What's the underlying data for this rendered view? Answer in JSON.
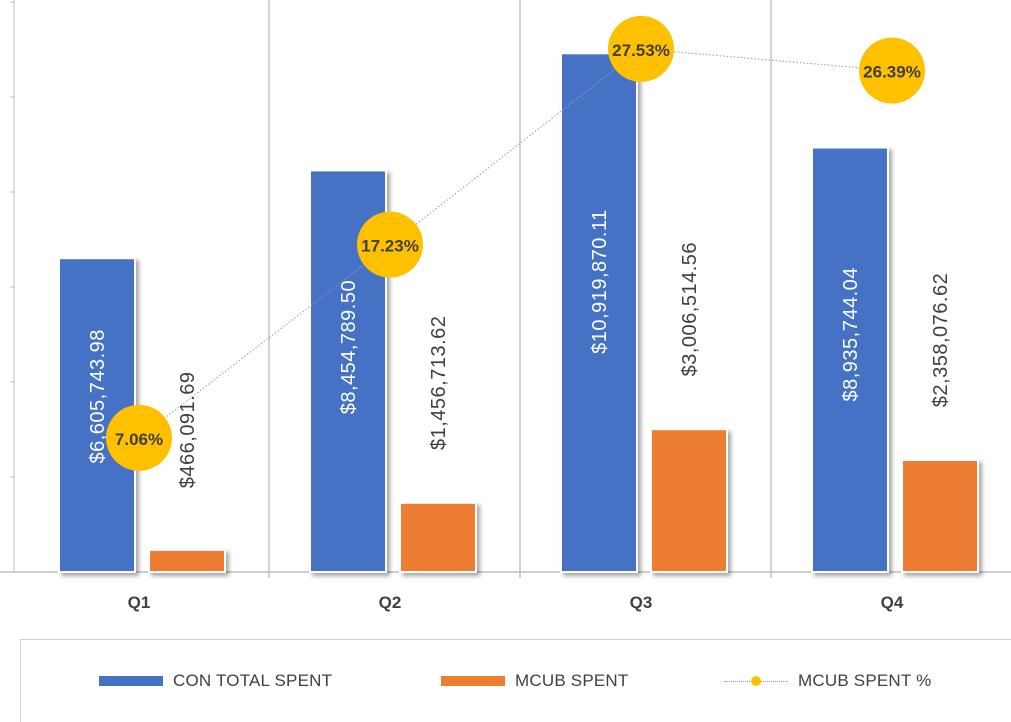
{
  "chart_data": {
    "type": "bar",
    "categories": [
      "Q1",
      "Q2",
      "Q3",
      "Q4"
    ],
    "series": [
      {
        "name": "CON TOTAL SPENT",
        "type": "bar",
        "axis": "primary",
        "values": [
          6605743.98,
          8454789.5,
          10919870.11,
          8935744.04
        ],
        "labels": [
          "$6,605,743.98",
          "$8,454,789.50",
          "$10,919,870.11",
          "$8,935,744.04"
        ],
        "color": "#4472c4"
      },
      {
        "name": "MCUB SPENT",
        "type": "bar",
        "axis": "primary",
        "values": [
          466091.69,
          1456713.62,
          3006514.56,
          2358076.62
        ],
        "labels": [
          "$466,091.69",
          "$1,456,713.62",
          "$3,006,514.56",
          "$2,358,076.62"
        ],
        "color": "#ed7d31"
      },
      {
        "name": "MCUB SPENT %",
        "type": "line",
        "axis": "secondary",
        "values": [
          7.06,
          17.23,
          27.53,
          26.39
        ],
        "labels": [
          "7.06%",
          "17.23%",
          "27.53%",
          "26.39%"
        ],
        "color": "#ffc000"
      }
    ],
    "ylim": [
      0,
      12000000
    ],
    "y2lim": [
      0,
      30
    ],
    "grid": "vertical separators between categories",
    "legend": "bottom",
    "title": "",
    "xlabel": "",
    "ylabel": ""
  }
}
